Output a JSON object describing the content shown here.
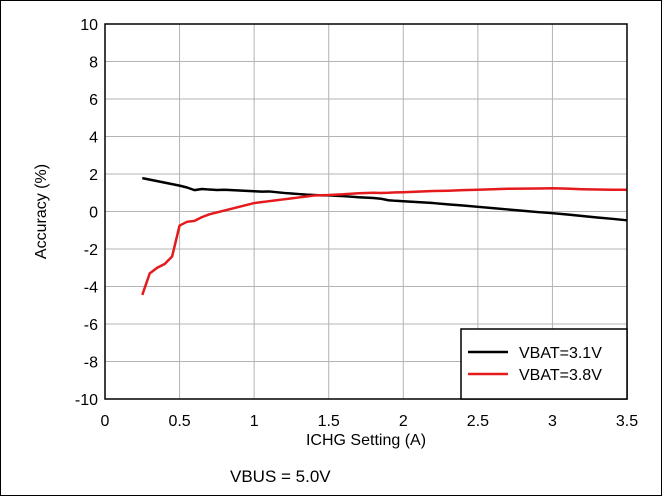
{
  "chart_data": {
    "type": "line",
    "title": "",
    "xlabel": "ICHG Setting (A)",
    "ylabel": "Accuracy (%)",
    "xlim": [
      0,
      3.5
    ],
    "ylim": [
      -10,
      10
    ],
    "x_ticks": [
      0,
      0.5,
      1,
      1.5,
      2,
      2.5,
      3,
      3.5
    ],
    "x_tick_labels": [
      "0",
      "0.5",
      "1",
      "1.5",
      "2",
      "2.5",
      "3",
      "3.5"
    ],
    "y_ticks": [
      -10,
      -8,
      -6,
      -4,
      -2,
      0,
      2,
      4,
      6,
      8,
      10
    ],
    "y_tick_labels": [
      "-10",
      "-8",
      "-6",
      "-4",
      "-2",
      "0",
      "2",
      "4",
      "6",
      "8",
      "10"
    ],
    "grid": true,
    "legend_position": "bottom-right",
    "annotation": "VBUS = 5.0V",
    "series": [
      {
        "name": "VBAT=3.1V",
        "color": "#000000",
        "x": [
          0.25,
          0.3,
          0.35,
          0.4,
          0.45,
          0.5,
          0.55,
          0.6,
          0.65,
          0.7,
          0.75,
          0.8,
          0.85,
          0.9,
          0.95,
          1.0,
          1.05,
          1.1,
          1.15,
          1.2,
          1.25,
          1.3,
          1.35,
          1.4,
          1.45,
          1.5,
          1.55,
          1.6,
          1.65,
          1.7,
          1.75,
          1.8,
          1.85,
          1.9,
          1.95,
          2.0,
          2.1,
          2.2,
          2.3,
          2.4,
          2.5,
          2.6,
          2.7,
          2.8,
          2.9,
          3.0,
          3.1,
          3.2,
          3.3,
          3.4,
          3.5
        ],
        "y": [
          1.78,
          1.7,
          1.62,
          1.54,
          1.46,
          1.38,
          1.28,
          1.14,
          1.2,
          1.17,
          1.15,
          1.16,
          1.14,
          1.12,
          1.1,
          1.08,
          1.06,
          1.07,
          1.03,
          0.99,
          0.96,
          0.93,
          0.9,
          0.88,
          0.86,
          0.86,
          0.84,
          0.82,
          0.79,
          0.76,
          0.74,
          0.72,
          0.68,
          0.6,
          0.57,
          0.55,
          0.5,
          0.45,
          0.38,
          0.32,
          0.25,
          0.18,
          0.11,
          0.04,
          -0.03,
          -0.09,
          -0.16,
          -0.24,
          -0.32,
          -0.39,
          -0.47
        ]
      },
      {
        "name": "VBAT=3.8V",
        "color": "#e41a1c",
        "x": [
          0.25,
          0.3,
          0.35,
          0.4,
          0.45,
          0.5,
          0.55,
          0.6,
          0.65,
          0.7,
          0.75,
          0.8,
          0.85,
          0.9,
          0.95,
          1.0,
          1.05,
          1.1,
          1.15,
          1.2,
          1.25,
          1.3,
          1.35,
          1.4,
          1.45,
          1.5,
          1.55,
          1.6,
          1.65,
          1.7,
          1.75,
          1.8,
          1.85,
          1.9,
          1.95,
          2.0,
          2.1,
          2.2,
          2.3,
          2.4,
          2.5,
          2.6,
          2.7,
          2.8,
          2.9,
          3.0,
          3.1,
          3.2,
          3.3,
          3.4,
          3.5
        ],
        "y": [
          -4.45,
          -3.3,
          -3.0,
          -2.8,
          -2.4,
          -0.75,
          -0.55,
          -0.5,
          -0.3,
          -0.15,
          -0.05,
          0.05,
          0.15,
          0.25,
          0.35,
          0.45,
          0.5,
          0.55,
          0.6,
          0.65,
          0.7,
          0.75,
          0.8,
          0.85,
          0.87,
          0.88,
          0.9,
          0.92,
          0.95,
          0.97,
          0.99,
          1.0,
          0.99,
          1.0,
          1.02,
          1.03,
          1.06,
          1.09,
          1.11,
          1.14,
          1.16,
          1.19,
          1.21,
          1.22,
          1.23,
          1.24,
          1.22,
          1.19,
          1.17,
          1.16,
          1.16
        ]
      }
    ]
  }
}
